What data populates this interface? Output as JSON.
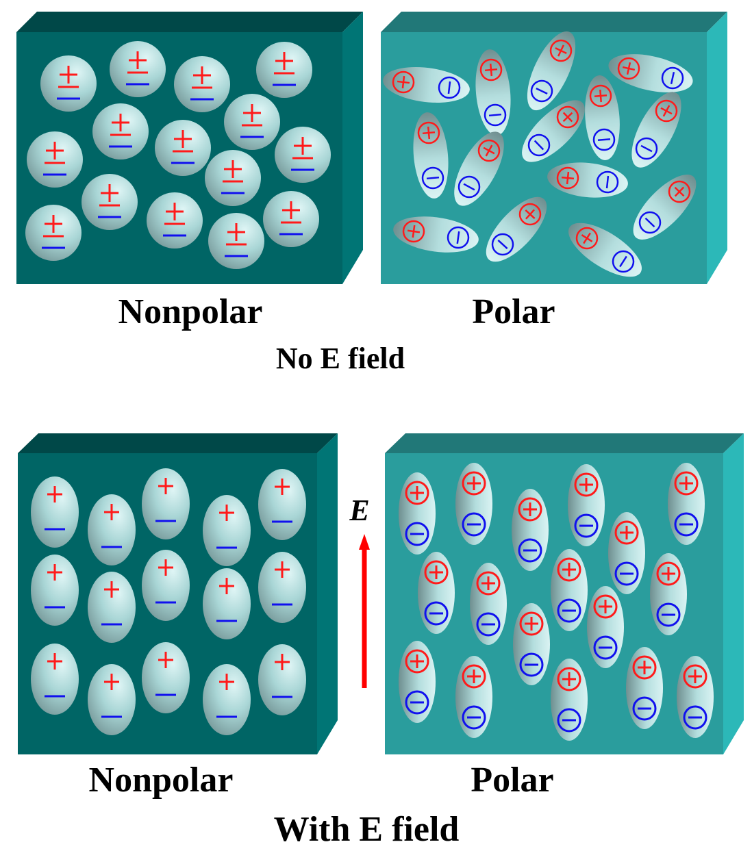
{
  "colors": {
    "nonpolar_front": "#006565",
    "nonpolar_top": "#004848",
    "nonpolar_side": "#007575",
    "polar_front": "#2a9d9d",
    "polar_top": "#217878",
    "polar_side": "#2cb8b8",
    "positive": "#ff1a1a",
    "negative": "#1010ee",
    "arrow": "#ff0000"
  },
  "top": {
    "nonpolar_label": "Nonpolar",
    "polar_label": "Polar",
    "condition_label": "No E field",
    "nonpolar_symbol": "±"
  },
  "bottom": {
    "nonpolar_label": "Nonpolar",
    "polar_label": "Polar",
    "condition_label": "With E field",
    "field_label": "E",
    "nonpolar_plus": "+",
    "nonpolar_minus": "—"
  }
}
